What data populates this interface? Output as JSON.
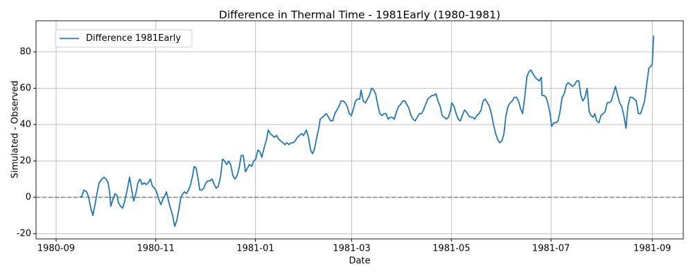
{
  "chart_data": {
    "type": "line",
    "title": "Difference in Thermal Time - 1981Early (1980-1981)",
    "xlabel": "Date",
    "ylabel": "Simulated - Observed",
    "x": [
      14.4,
      15.7,
      17.0,
      18.7,
      19.9,
      21.2,
      22.5,
      23.8,
      25.0,
      26.3,
      28.0,
      29.3,
      30.6,
      31.8,
      32.7,
      33.5,
      34.8,
      36.1,
      37.3,
      38.2,
      39.5,
      40.7,
      42.0,
      43.3,
      45.0,
      46.3,
      47.5,
      48.8,
      50.1,
      51.4,
      52.6,
      53.9,
      55.2,
      56.4,
      57.7,
      59.0,
      60.3,
      61.5,
      62.8,
      64.1,
      65.4,
      66.6,
      67.5,
      68.8,
      70.0,
      71.3,
      72.6,
      73.8,
      75.1,
      76.4,
      77.7,
      78.5,
      79.8,
      81.1,
      82.3,
      83.6,
      84.5,
      85.7,
      87.0,
      87.9,
      89.1,
      90.4,
      91.7,
      92.9,
      94.2,
      95.5,
      96.8,
      98.0,
      99.3,
      100.6,
      101.9,
      103.1,
      104.4,
      105.7,
      106.9,
      108.2,
      109.5,
      110.8,
      112.0,
      113.3,
      114.6,
      115.9,
      117.1,
      118.4,
      119.7,
      121.0,
      122.2,
      123.5,
      124.8,
      126.0,
      127.3,
      128.6,
      129.9,
      131.1,
      132.4,
      133.7,
      135.0,
      136.2,
      137.5,
      138.8,
      140.1,
      141.3,
      142.6,
      143.9,
      145.1,
      146.4,
      147.7,
      149.0,
      150.2,
      151.5,
      153.2,
      154.5,
      155.8,
      157.0,
      158.3,
      159.6,
      160.8,
      161.7,
      163.0,
      164.2,
      165.5,
      166.8,
      168.1,
      169.3,
      170.6,
      171.9,
      173.2,
      174.4,
      175.7,
      177.0,
      178.2,
      179.5,
      180.8,
      182.1,
      183.3,
      184.6,
      185.9,
      186.7,
      188.0,
      189.3,
      190.6,
      191.8,
      193.1,
      194.4,
      195.6,
      196.9,
      198.2,
      199.5,
      200.7,
      202.0,
      203.3,
      204.6,
      205.8,
      207.1,
      208.4,
      209.7,
      210.9,
      212.2,
      213.5,
      214.7,
      216.0,
      217.3,
      218.6,
      219.8,
      221.1,
      222.4,
      223.7,
      224.9,
      226.2,
      227.5,
      228.8,
      230.0,
      231.3,
      232.6,
      233.8,
      235.1,
      236.4,
      237.7,
      238.9,
      240.2,
      241.5,
      242.3,
      243.6,
      244.9,
      246.2,
      247.4,
      248.7,
      250.0,
      251.2,
      252.5,
      253.8,
      255.1,
      256.3,
      257.6,
      258.9,
      260.2,
      261.4,
      262.7,
      264.0,
      265.3,
      266.5,
      267.8,
      269.1,
      270.3,
      271.6,
      272.9,
      274.2,
      275.4,
      276.7,
      278.0,
      279.3,
      280.5,
      281.8,
      283.1,
      284.3,
      285.6,
      286.9,
      288.2,
      289.4,
      290.7,
      292.0,
      293.3,
      294.5,
      295.8,
      297.1,
      297.5,
      298.8,
      300.0,
      301.3,
      302.6,
      303.4,
      304.7,
      306.0,
      307.3,
      308.5,
      309.8,
      311.1,
      312.4,
      313.6,
      314.9,
      316.2,
      317.5,
      318.7,
      320.0,
      321.3,
      322.5,
      323.8,
      325.1,
      326.4,
      327.6,
      328.9,
      329.8,
      331.0,
      332.3,
      333.6,
      334.9,
      336.1,
      337.4,
      338.7,
      339.9,
      341.2,
      342.5,
      343.8,
      345.0,
      346.3,
      347.6,
      348.9,
      350.1,
      351.4,
      352.7,
      354.0,
      355.2,
      356.5,
      357.8,
      359.0,
      360.3,
      361.6,
      362.9,
      364.1,
      365.0,
      365.8
    ],
    "series": [
      {
        "name": "Difference 1981Early",
        "color": "#1f77b4",
        "values": [
          0,
          0.5,
          4,
          3,
          0,
          -6,
          -10,
          -4,
          2,
          8,
          10,
          11,
          10,
          8,
          3,
          -5,
          -1,
          2,
          1,
          -3,
          -5,
          -6,
          -2,
          3,
          11,
          4,
          -2,
          2,
          8,
          10,
          7,
          8,
          7,
          8,
          10,
          6,
          5,
          3,
          -1,
          -4,
          -1,
          1,
          3,
          -2,
          -6,
          -10,
          -16,
          -13,
          -7,
          0,
          2,
          3,
          2,
          4,
          7,
          12,
          17,
          16,
          10,
          4,
          4,
          5,
          8,
          9,
          9,
          10,
          7,
          5,
          6,
          11,
          21,
          20,
          18,
          20,
          18,
          12,
          10,
          12,
          16,
          23,
          23,
          14,
          16,
          18,
          17,
          20,
          21,
          26,
          25,
          22,
          27,
          31,
          37,
          35,
          34,
          33,
          34,
          32,
          31,
          30,
          29,
          30,
          29,
          30,
          30,
          31,
          33,
          34,
          35,
          34,
          37,
          33,
          26,
          24,
          27,
          33,
          38,
          43,
          44,
          45,
          46,
          44,
          42,
          42,
          46,
          48,
          50,
          53,
          53,
          52,
          50,
          46,
          45,
          49,
          53,
          54,
          54,
          59,
          53,
          52,
          54,
          56,
          60,
          59,
          57,
          51,
          46,
          45,
          46,
          46,
          43,
          44,
          44,
          43,
          47,
          50,
          51,
          53,
          53,
          51,
          49,
          45,
          43,
          42,
          44,
          46,
          46,
          48,
          51,
          54,
          55,
          56,
          56,
          57,
          53,
          50,
          45,
          44,
          43,
          44,
          48,
          52,
          50,
          46,
          43,
          42,
          45,
          48,
          47,
          45,
          44,
          44,
          43,
          45,
          46,
          48,
          53,
          54,
          52,
          50,
          46,
          40,
          35,
          32,
          30,
          31,
          35,
          45,
          50,
          52,
          53,
          55,
          55,
          53,
          49,
          46,
          55,
          66,
          69,
          70,
          68,
          66,
          65,
          64,
          66,
          56,
          56,
          55,
          51,
          45,
          39,
          41,
          41,
          42,
          47,
          55,
          57,
          62,
          63,
          62,
          61,
          62,
          64,
          64,
          56,
          53,
          55,
          60,
          47,
          45,
          44,
          46,
          42,
          41,
          45,
          46,
          47,
          52,
          52,
          53,
          57,
          61,
          56,
          52,
          50,
          45,
          38,
          50,
          55,
          55,
          54,
          53,
          46,
          46,
          49,
          53,
          62,
          71,
          72,
          73,
          89
        ]
      }
    ],
    "hline": 0,
    "xlim": [
      -12.3,
      384
    ],
    "xticks": [
      {
        "value": 0,
        "label": "1980-09"
      },
      {
        "value": 61,
        "label": "1980-11"
      },
      {
        "value": 122,
        "label": "1981-01"
      },
      {
        "value": 181,
        "label": "1981-03"
      },
      {
        "value": 242,
        "label": "1981-05"
      },
      {
        "value": 303,
        "label": "1981-07"
      },
      {
        "value": 365,
        "label": "1981-09"
      }
    ],
    "ylim": [
      -22.9,
      97.1
    ],
    "yticks": [
      -20,
      0,
      20,
      40,
      60,
      80
    ],
    "grid": true,
    "legend": "upper left"
  }
}
